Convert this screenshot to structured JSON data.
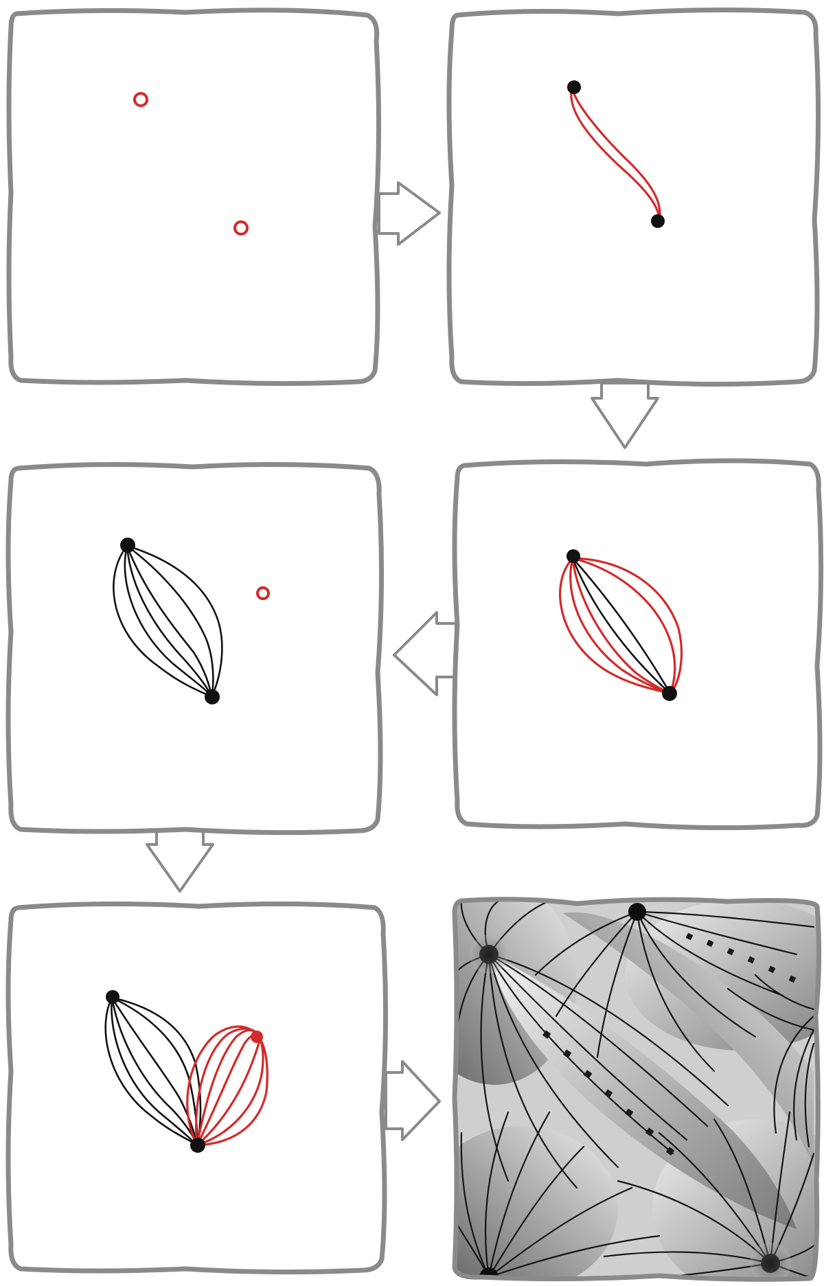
{
  "colors": {
    "frame": "#8a8a8a",
    "background": "#ffffff",
    "accent_ink": "#d42a2a",
    "black_ink": "#111111"
  },
  "steps": [
    {
      "id": 1,
      "description_icon": "two-red-dots"
    },
    {
      "id": 2,
      "description_icon": "red-s-curve-between-dots"
    },
    {
      "id": 3,
      "description_icon": "black-leaf-with-new-red-dot"
    },
    {
      "id": 4,
      "description_icon": "red-outer-curves-on-leaf"
    },
    {
      "id": 5,
      "description_icon": "second-leaf-in-red"
    },
    {
      "id": 6,
      "description_icon": "finished-shaded-tile"
    }
  ],
  "arrows": [
    {
      "from": 1,
      "to": 2,
      "direction": "right"
    },
    {
      "from": 2,
      "to": 3,
      "direction": "down"
    },
    {
      "from": 4,
      "to": 3,
      "direction": "left"
    },
    {
      "from": 3,
      "to": 5,
      "direction": "down"
    },
    {
      "from": 5,
      "to": 6,
      "direction": "right"
    }
  ]
}
